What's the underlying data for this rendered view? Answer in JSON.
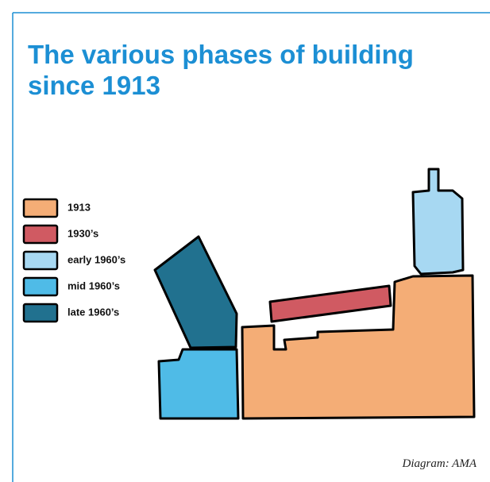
{
  "title": [
    "The various phases of building",
    "since 1913"
  ],
  "legend": [
    {
      "label": "1913",
      "color": "#f4ad76"
    },
    {
      "label": "1930’s",
      "color": "#d05a62"
    },
    {
      "label": "early 1960’s",
      "color": "#a7d8f2"
    },
    {
      "label": "mid 1960’s",
      "color": "#4fbbe7"
    },
    {
      "label": "late 1960’s",
      "color": "#21718f"
    }
  ],
  "credit": "Diagram: AMA"
}
